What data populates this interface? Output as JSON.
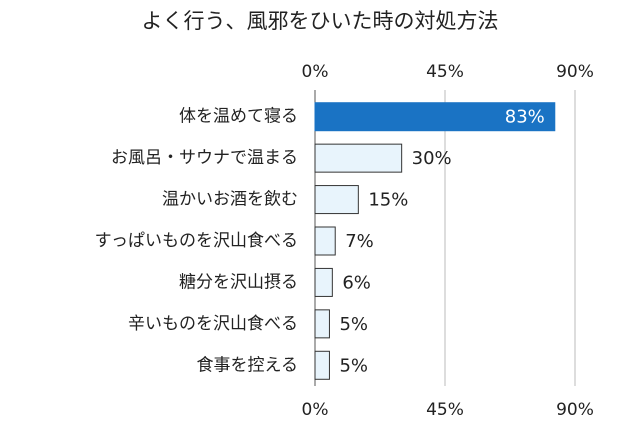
{
  "chart_data": {
    "type": "hbar",
    "title": "よく行う、風邪をひいた時の対処方法",
    "categories": [
      "体を温めて寝る",
      "お風呂・サウナで温まる",
      "温かいお酒を飲む",
      "すっぱいものを沢山食べる",
      "糖分を沢山摂る",
      "辛いものを沢山食べる",
      "食事を控える"
    ],
    "values": [
      83,
      30,
      15,
      7,
      6,
      5,
      5
    ],
    "value_labels": [
      "83%",
      "30%",
      "15%",
      "7%",
      "6%",
      "5%",
      "5%"
    ],
    "colors": [
      "#1a73c4",
      "#e8f4fc",
      "#e8f4fc",
      "#e8f4fc",
      "#e8f4fc",
      "#e8f4fc",
      "#e8f4fc"
    ],
    "xlim": [
      0,
      90
    ],
    "xticks": [
      {
        "value": 0,
        "label": "0%"
      },
      {
        "value": 45,
        "label": "45%"
      },
      {
        "value": 90,
        "label": "90%"
      }
    ],
    "grid": true
  }
}
